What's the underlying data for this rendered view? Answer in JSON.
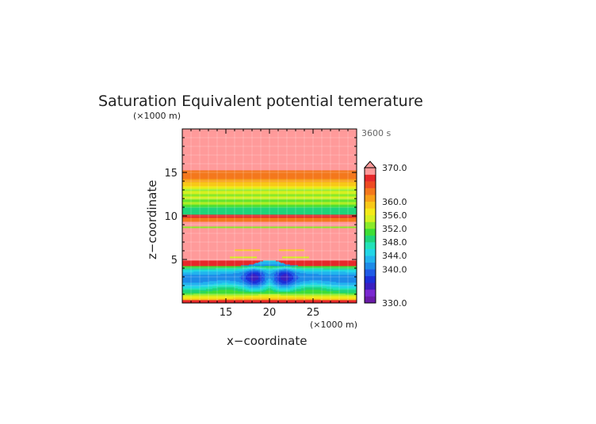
{
  "chart_data": {
    "type": "heatmap",
    "title": "Saturation Equivalent potential temerature",
    "xlabel": "x−coordinate",
    "ylabel": "z−coordinate",
    "x_unit": "(×1000 m)",
    "y_unit": "(×1000 m)",
    "time_label": "3600 s",
    "xlim": [
      10,
      30
    ],
    "ylim": [
      0,
      20
    ],
    "x_ticks": [
      "15",
      "20",
      "25"
    ],
    "x_tick_values": [
      15,
      20,
      25
    ],
    "y_ticks": [
      "5",
      "10",
      "15"
    ],
    "y_tick_values": [
      5,
      10,
      15
    ],
    "colorbar": {
      "min": 330,
      "max": 370,
      "extend": "max",
      "levels": [
        330,
        332,
        334,
        336,
        338,
        340,
        342,
        344,
        346,
        348,
        350,
        352,
        354,
        356,
        358,
        360,
        362,
        364,
        366,
        368,
        370
      ],
      "colors": [
        "#6a1ba8",
        "#7a28d0",
        "#3a1fc0",
        "#1d2fd8",
        "#1f5be6",
        "#1d8be8",
        "#22b4ee",
        "#22d6e6",
        "#22e2b8",
        "#1fd47a",
        "#3ede36",
        "#8aea2a",
        "#d6f020",
        "#f4ea18",
        "#f8c818",
        "#f8a018",
        "#f4781c",
        "#ee4a22",
        "#e6282a",
        "#ff9a9a"
      ],
      "tick_labels": [
        "370.0",
        "360.0",
        "356.0",
        "352.0",
        "348.0",
        "344.0",
        "340.0",
        "330.0"
      ],
      "tick_values": [
        370,
        360,
        356,
        352,
        348,
        344,
        340,
        330
      ]
    },
    "grid": true,
    "domain": "x from 10 to 30 km, z from 0 to 20 km"
  }
}
